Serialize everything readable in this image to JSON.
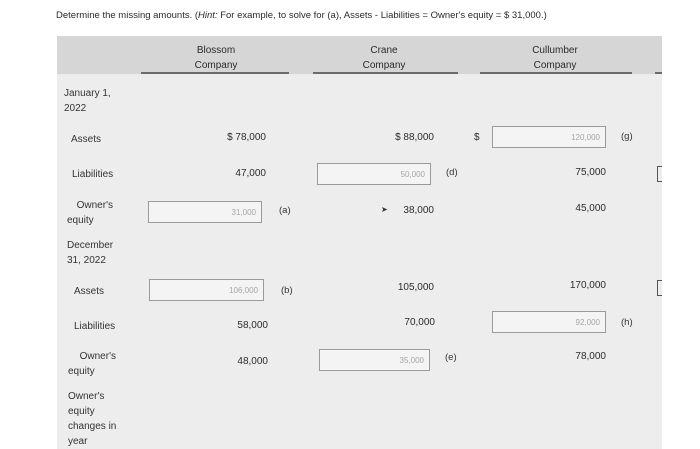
{
  "instruction": {
    "prefix": "Determine the missing amounts. (",
    "hint": "Hint:",
    "rest": " For example, to solve for (a), Assets - Liabilities = Owner's equity = $ 31,000.)"
  },
  "columns": {
    "blossom": [
      "Blossom",
      "Company"
    ],
    "crane": [
      "Crane",
      "Company"
    ],
    "cullumber": [
      "Cullumber",
      "Company"
    ]
  },
  "rows": {
    "jan": [
      "January 1,",
      "2022"
    ],
    "assets1": "Assets",
    "liabilities1": "Liabilities",
    "equity1": [
      "Owner's",
      "equity"
    ],
    "dec": [
      "December",
      "31, 2022"
    ],
    "assets2": "Assets",
    "liabilities2": "Liabilities",
    "equity2": [
      "Owner's",
      "equity"
    ],
    "changes": [
      "Owner's",
      "equity",
      "changes in",
      "year"
    ]
  },
  "values": {
    "blossom_assets1": "$ 78,000",
    "blossom_liabilities1": "47,000",
    "blossom_liabilities2": "58,000",
    "blossom_equity2": "48,000",
    "crane_assets1": "$ 88,000",
    "crane_equity1": "38,000",
    "crane_assets2": "105,000",
    "crane_liabilities2": "70,000",
    "cullumber_dollar": "$",
    "cullumber_liabilities1": "75,000",
    "cullumber_equity1": "45,000",
    "cullumber_assets2": "170,000",
    "cullumber_equity2": "78,000"
  },
  "inputs": {
    "a": "31,000",
    "b": "106,000",
    "d": "50,000",
    "e": "35,000",
    "g": "120,000",
    "h": "92,000"
  },
  "tags": {
    "a": "(a)",
    "b": "(b)",
    "d": "(d)",
    "e": "(e)",
    "g": "(g)",
    "h": "(h)"
  },
  "icons": {
    "bracket": "bracket-icon",
    "arrow": "pointer-arrow-icon"
  }
}
